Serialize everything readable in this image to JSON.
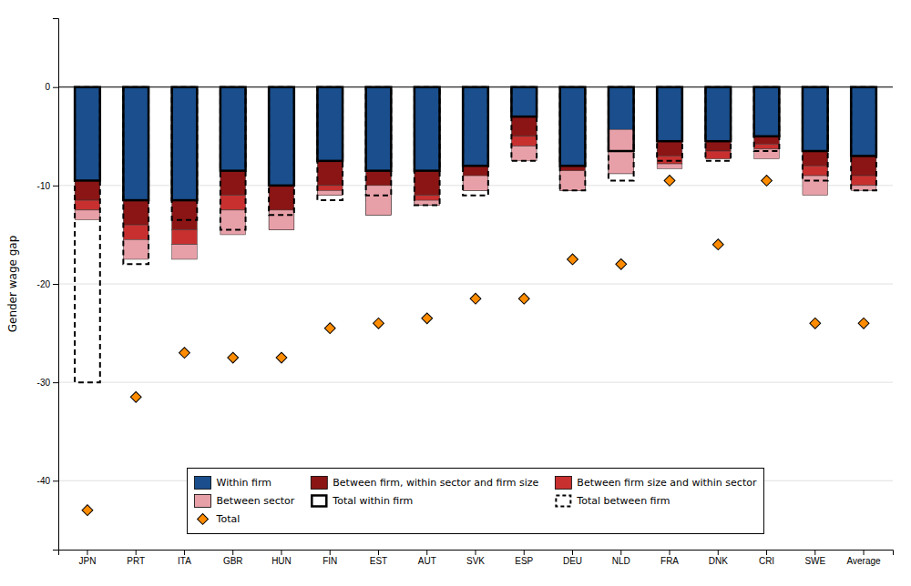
{
  "chart_data": {
    "type": "bar",
    "stacked": true,
    "ylabel": "Gender wage gap",
    "categories": [
      "JPN",
      "PRT",
      "ITA",
      "GBR",
      "HUN",
      "FIN",
      "EST",
      "AUT",
      "SVK",
      "ESP",
      "DEU",
      "NLD",
      "FRA",
      "DNK",
      "CRI",
      "SWE",
      "Average"
    ],
    "series": [
      {
        "name": "Within firm",
        "type": "bar",
        "color": "#1A4E8C",
        "values": [
          -9.5,
          -11.5,
          -11.5,
          -8.5,
          -10.0,
          -7.5,
          -8.5,
          -8.5,
          -8.0,
          -3.0,
          -8.0,
          -6.5,
          -5.5,
          -5.5,
          -5.0,
          -6.5,
          -7.0
        ]
      },
      {
        "name": "Between firm, within sector and firm size",
        "type": "bar",
        "color": "#8B1515",
        "values": [
          -2.0,
          -2.5,
          -3.0,
          -2.5,
          -3.0,
          -2.5,
          -3.0,
          -2.5,
          -1.5,
          -2.0,
          -1.5,
          -1.5,
          -1.5,
          -1.0,
          -0.8,
          -1.5,
          -2.0
        ]
      },
      {
        "name": "Between firm size and within sector",
        "type": "bar",
        "color": "#C83030",
        "values": [
          -1.0,
          -1.5,
          -1.5,
          -1.5,
          -1.5,
          -1.0,
          -1.5,
          -1.0,
          -1.0,
          -1.0,
          -1.0,
          -0.8,
          -0.8,
          -0.8,
          -0.5,
          -1.0,
          -1.0
        ]
      },
      {
        "name": "Between sector",
        "type": "bar",
        "color": "#E8A0A8",
        "values": [
          -1.0,
          -2.0,
          -1.5,
          -2.5,
          2.0,
          0.5,
          3.0,
          0.5,
          1.5,
          -1.5,
          2.0,
          4.5,
          -0.5,
          0.0,
          -1.0,
          -2.0,
          -0.5
        ]
      },
      {
        "name": "Total within firm",
        "type": "outline",
        "line_style": "solid",
        "values": [
          -9.5,
          -11.5,
          -11.5,
          -8.5,
          -10.0,
          -7.5,
          -8.5,
          -8.5,
          -8.0,
          -3.0,
          -8.0,
          -6.5,
          -5.5,
          -5.5,
          -5.0,
          -6.5,
          -7.0
        ]
      },
      {
        "name": "Total between firm",
        "type": "outline",
        "line_style": "dashed",
        "values": [
          -30.0,
          -18.0,
          -13.5,
          -14.5,
          -13.0,
          -11.5,
          -11.0,
          -12.0,
          -11.0,
          -7.5,
          -10.5,
          -9.5,
          -7.5,
          -7.5,
          -6.5,
          -9.5,
          -10.5
        ]
      },
      {
        "name": "Total",
        "type": "scatter",
        "marker": "diamond",
        "color": "#FF8C00",
        "values": [
          -43.0,
          -31.5,
          -27.0,
          -27.5,
          -27.5,
          -24.5,
          -24.0,
          -23.5,
          -21.5,
          -21.5,
          -17.5,
          -18.0,
          -9.5,
          -16.0,
          -9.5,
          -24.0,
          -24.0
        ]
      }
    ],
    "ylim": [
      -47,
      7
    ],
    "yticks": [
      0,
      -10,
      -20,
      -30,
      -40
    ],
    "grid": true,
    "legend": "bottom"
  }
}
